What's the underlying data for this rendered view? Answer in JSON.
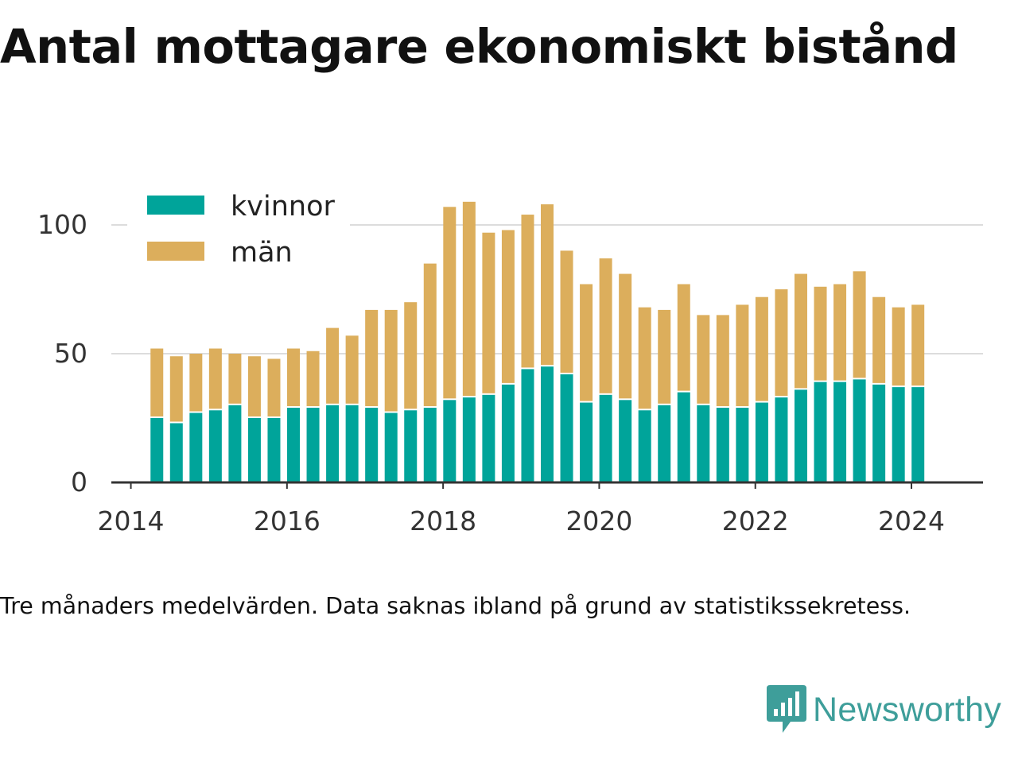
{
  "title": "Antal mottagare ekonomiskt bistånd",
  "caption": "Tre månaders medelvärden. Data saknas ibland på grund av statistikssekretess.",
  "brand": {
    "name": "Newsworthy",
    "icon": "bar-chart-speech-bubble-icon",
    "color": "#3e9e9a"
  },
  "chart_data": {
    "type": "bar",
    "stacked": true,
    "x": [
      "2014-05",
      "2014-08",
      "2014-11",
      "2015-02",
      "2015-05",
      "2015-08",
      "2015-11",
      "2016-02",
      "2016-05",
      "2016-08",
      "2016-11",
      "2017-02",
      "2017-05",
      "2017-08",
      "2017-11",
      "2018-02",
      "2018-05",
      "2018-08",
      "2018-11",
      "2019-02",
      "2019-05",
      "2019-08",
      "2019-11",
      "2020-02",
      "2020-05",
      "2020-08",
      "2020-11",
      "2021-02",
      "2021-05",
      "2021-08",
      "2021-11",
      "2022-02",
      "2022-05",
      "2022-08",
      "2022-11",
      "2023-02",
      "2023-05",
      "2023-08",
      "2023-11",
      "2024-02"
    ],
    "series": [
      {
        "name": "kvinnor",
        "color": "#00a49a",
        "values": [
          25,
          23,
          27,
          28,
          30,
          25,
          25,
          29,
          29,
          30,
          30,
          29,
          27,
          28,
          29,
          32,
          33,
          34,
          38,
          44,
          45,
          42,
          31,
          34,
          32,
          28,
          30,
          35,
          30,
          29,
          29,
          31,
          33,
          36,
          39,
          39,
          40,
          38,
          37,
          37
        ]
      },
      {
        "name": "män",
        "color": "#dcae5c",
        "values": [
          27,
          26,
          23,
          24,
          20,
          24,
          23,
          23,
          22,
          30,
          27,
          38,
          40,
          42,
          56,
          75,
          76,
          63,
          60,
          60,
          63,
          48,
          46,
          53,
          49,
          40,
          37,
          42,
          35,
          36,
          40,
          41,
          42,
          45,
          37,
          38,
          42,
          34,
          31,
          32
        ]
      }
    ],
    "x_ticks": [
      "2014",
      "2016",
      "2018",
      "2020",
      "2022",
      "2024"
    ],
    "y_ticks": [
      "0",
      "50",
      "100"
    ],
    "ylim": [
      0,
      115
    ],
    "xlim": [
      "2013-10",
      "2024-12"
    ],
    "grid": true,
    "legend": "top-left"
  }
}
